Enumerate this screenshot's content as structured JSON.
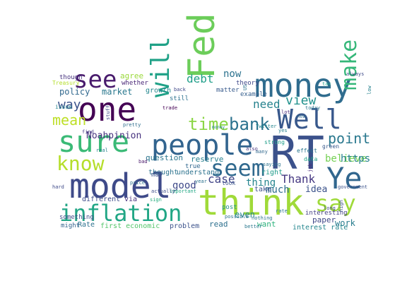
{
  "words": [
    {
      "text": "RT",
      "color": "#3b518b"
    },
    {
      "text": "think",
      "color": "#a0da39"
    },
    {
      "text": "model",
      "color": "#3e4a89"
    },
    {
      "text": "people",
      "color": "#32648e"
    },
    {
      "text": "one",
      "color": "#440154"
    },
    {
      "text": "money",
      "color": "#2f6c8e"
    },
    {
      "text": "sure",
      "color": "#3aba76"
    },
    {
      "text": "inflation",
      "color": "#21a685"
    },
    {
      "text": "Fed",
      "color": "#6ccd5a"
    },
    {
      "text": "Well",
      "color": "#38588c"
    },
    {
      "text": "Ye",
      "color": "#31668e"
    },
    {
      "text": "see",
      "color": "#481a6c"
    },
    {
      "text": "know",
      "color": "#b5de2b"
    },
    {
      "text": "seem",
      "color": "#30698e"
    },
    {
      "text": "say",
      "color": "#9fda3a"
    },
    {
      "text": "make",
      "color": "#35b779"
    },
    {
      "text": "will",
      "color": "#1fa187"
    },
    {
      "text": "time",
      "color": "#8bd646"
    },
    {
      "text": "bank",
      "color": "#2c728e"
    },
    {
      "text": "view",
      "color": "#21918c"
    },
    {
      "text": "point",
      "color": "#2a788e"
    },
    {
      "text": "mean",
      "color": "#bddf26"
    },
    {
      "text": "way",
      "color": "#3b528b"
    },
    {
      "text": "need",
      "color": "#26828e"
    },
    {
      "text": "debt",
      "color": "#1f9e89"
    },
    {
      "text": "case",
      "color": "#414487"
    },
    {
      "text": "Thank",
      "color": "#453781"
    },
    {
      "text": "thing",
      "color": "#25848e"
    },
    {
      "text": "much",
      "color": "#2e6e8e"
    },
    {
      "text": "believe",
      "color": "#75d054"
    },
    {
      "text": "https",
      "color": "#26818e"
    },
    {
      "text": "idea",
      "color": "#3b528b"
    },
    {
      "text": "Noahpinion",
      "color": "#46327e"
    },
    {
      "text": "now",
      "color": "#2c728e"
    },
    {
      "text": "policy",
      "color": "#31688e"
    },
    {
      "text": "market",
      "color": "#2a788e"
    },
    {
      "text": "agree",
      "color": "#9bd93c"
    },
    {
      "text": "good",
      "color": "#3e4989"
    },
    {
      "text": "even",
      "color": "#24868e"
    },
    {
      "text": "paper",
      "color": "#3f4788"
    },
    {
      "text": "work",
      "color": "#287c8e"
    },
    {
      "text": "want",
      "color": "#2db27d"
    },
    {
      "text": "read",
      "color": "#2d708e"
    },
    {
      "text": "interest rate",
      "color": "#24868e"
    },
    {
      "text": "first economic",
      "color": "#52c569"
    },
    {
      "text": "reserve",
      "color": "#277f8e"
    },
    {
      "text": "question",
      "color": "#2a768e"
    },
    {
      "text": "understand",
      "color": "#2c728e"
    },
    {
      "text": "right",
      "color": "#1e9b8a"
    },
    {
      "text": "take",
      "color": "#3c508b"
    },
    {
      "text": "interesting",
      "color": "#433e85"
    },
    {
      "text": "thought",
      "color": "#2c738e"
    },
    {
      "text": "problem",
      "color": "#3b528b"
    },
    {
      "text": "different",
      "color": "#3e4c8a"
    },
    {
      "text": "via",
      "color": "#472f7d"
    },
    {
      "text": "growth",
      "color": "#24878e"
    },
    {
      "text": "Rate",
      "color": "#2d718e"
    },
    {
      "text": "example",
      "color": "#355f8d"
    },
    {
      "text": "though",
      "color": "#46327e"
    },
    {
      "text": "something",
      "color": "#3e4a89"
    },
    {
      "text": "might",
      "color": "#33638d"
    },
    {
      "text": "may",
      "color": "#3a548c"
    },
    {
      "text": "whether",
      "color": "#482576"
    },
    {
      "text": "theory",
      "color": "#3f4889"
    },
    {
      "text": "true",
      "color": "#31678e"
    },
    {
      "text": "matter",
      "color": "#375a8c"
    },
    {
      "text": "post",
      "color": "#21918c"
    },
    {
      "text": "still",
      "color": "#2c728e"
    },
    {
      "text": "issue",
      "color": "#25848e"
    },
    {
      "text": "Treasury",
      "color": "#b5de2b"
    },
    {
      "text": "data",
      "color": "#20a386"
    },
    {
      "text": "green",
      "color": "#38598c"
    },
    {
      "text": "effect",
      "color": "#2a768e"
    },
    {
      "text": "strong",
      "color": "#1f9e89"
    },
    {
      "text": "find",
      "color": "#443a83"
    },
    {
      "text": "look",
      "color": "#3a548c"
    },
    {
      "text": "better",
      "color": "#2a788e"
    },
    {
      "text": "nothing",
      "color": "#2c728e"
    },
    {
      "text": "today",
      "color": "#2a768e"
    },
    {
      "text": "sign",
      "color": "#28ae80"
    },
    {
      "text": "trade",
      "color": "#440154"
    },
    {
      "text": "Twitter",
      "color": "#24868e"
    },
    {
      "text": "possible",
      "color": "#2d708e"
    },
    {
      "text": "always",
      "color": "#3e4a89"
    },
    {
      "text": "lot",
      "color": "#482878"
    },
    {
      "text": "many",
      "color": "#31688e"
    },
    {
      "text": "saying",
      "color": "#2c728e"
    },
    {
      "text": "government",
      "color": "#3b528b"
    },
    {
      "text": "important",
      "color": "#22a884"
    },
    {
      "text": "real",
      "color": "#25848e"
    },
    {
      "text": "also",
      "color": "#46337f"
    },
    {
      "text": "back",
      "color": "#3f4788"
    },
    {
      "text": "rate",
      "color": "#2a788e"
    },
    {
      "text": "tax",
      "color": "#1f9e89"
    },
    {
      "text": "year",
      "color": "#2c728e"
    },
    {
      "text": "hard",
      "color": "#3e4989"
    },
    {
      "text": "pretty",
      "color": "#2e6e8e"
    },
    {
      "text": "bad",
      "color": "#48186a"
    },
    {
      "text": "long",
      "color": "#404688"
    },
    {
      "text": "new",
      "color": "#306a8e"
    },
    {
      "text": "yes",
      "color": "#27808e"
    },
    {
      "text": "money",
      "color": "#25838e"
    },
    {
      "text": "price",
      "color": "#2d708e"
    },
    {
      "text": "actually",
      "color": "#3d4e8a"
    },
    {
      "text": "US",
      "color": "#2b748e"
    },
    {
      "text": "job",
      "color": "#472c7a"
    },
    {
      "text": "low",
      "color": "#26828e"
    },
    {
      "text": "high",
      "color": "#3b528b"
    },
    {
      "text": "stuff",
      "color": "#3e4a89"
    }
  ]
}
